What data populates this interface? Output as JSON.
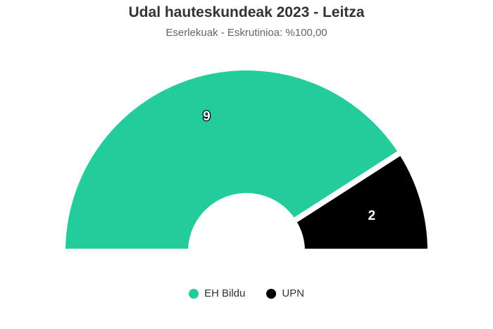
{
  "chart_data": {
    "type": "pie",
    "variant": "parliament-semicircle",
    "title": "Udal hauteskundeak 2023 - Leitza",
    "subtitle": "Eserlekuak - Eskrutinioa: %100,00",
    "categories": [
      "EH Bildu",
      "UPN"
    ],
    "values": [
      9,
      2
    ],
    "colors": [
      "#24cc9c",
      "#000000"
    ],
    "data_labels": [
      "9",
      "2"
    ],
    "legend_position": "bottom-center"
  }
}
